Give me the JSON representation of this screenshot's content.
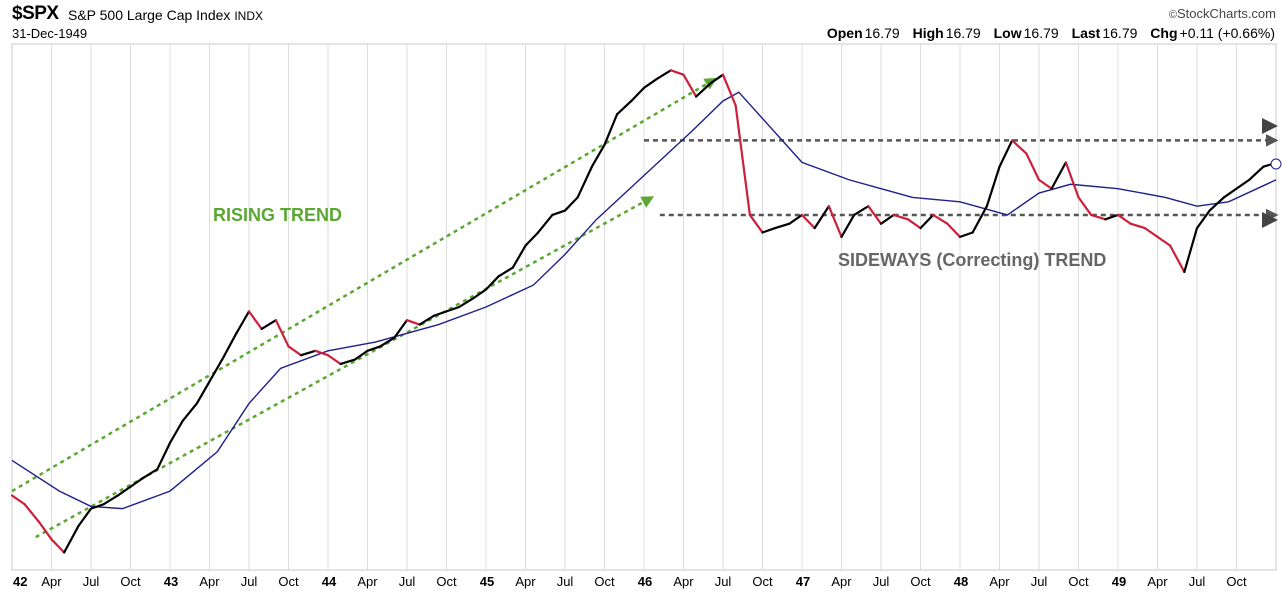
{
  "header": {
    "symbol": "$SPX",
    "name": "S&P 500 Large Cap Index",
    "exchange": "INDX",
    "date": "31-Dec-1949",
    "brand": "StockCharts.com",
    "open_label": "Open",
    "open": "16.79",
    "high_label": "High",
    "high": "16.79",
    "low_label": "Low",
    "low": "16.79",
    "last_label": "Last",
    "last": "16.79",
    "chg_label": "Chg",
    "chg": "+0.11 (+0.66%)"
  },
  "colors": {
    "up": "#000000",
    "down": "#cc1f3a",
    "moving_average": "#20208a",
    "rising_trend": "#5aa832",
    "sideways_trend": "#555555",
    "grid": "#dddddd"
  },
  "annotations": {
    "rising": "RISING TREND",
    "sideways": "SIDEWAYS (Correcting) TREND"
  },
  "chart_data": {
    "type": "line",
    "title": "$SPX S&P 500 Large Cap Index INDX",
    "x_ticks": [
      "42",
      "Apr",
      "Jul",
      "Oct",
      "43",
      "Apr",
      "Jul",
      "Oct",
      "44",
      "Apr",
      "Jul",
      "Oct",
      "45",
      "Apr",
      "Jul",
      "Oct",
      "46",
      "Apr",
      "Jul",
      "Oct",
      "47",
      "Apr",
      "Jul",
      "Oct",
      "48",
      "Apr",
      "Jul",
      "Oct",
      "49",
      "Apr",
      "Jul",
      "Oct"
    ],
    "x_range": [
      1942.0,
      1950.0
    ],
    "y_range": [
      7.5,
      19.5
    ],
    "grid": true,
    "series": [
      {
        "style": "price (black up / red down)",
        "x": [
          1942.0,
          1942.08,
          1942.17,
          1942.25,
          1942.33,
          1942.42,
          1942.5,
          1942.58,
          1942.67,
          1942.75,
          1942.83,
          1942.92,
          1943.0,
          1943.08,
          1943.17,
          1943.25,
          1943.33,
          1943.42,
          1943.5,
          1943.58,
          1943.67,
          1943.75,
          1943.83,
          1943.92,
          1944.0,
          1944.08,
          1944.17,
          1944.25,
          1944.33,
          1944.42,
          1944.5,
          1944.58,
          1944.67,
          1944.75,
          1944.83,
          1944.92,
          1945.0,
          1945.08,
          1945.17,
          1945.25,
          1945.33,
          1945.42,
          1945.5,
          1945.58,
          1945.67,
          1945.75,
          1945.83,
          1945.92,
          1946.0,
          1946.08,
          1946.17,
          1946.25,
          1946.33,
          1946.42,
          1946.5,
          1946.58,
          1946.67,
          1946.75,
          1946.83,
          1946.92,
          1947.0,
          1947.08,
          1947.17,
          1947.25,
          1947.33,
          1947.42,
          1947.5,
          1947.58,
          1947.67,
          1947.75,
          1947.83,
          1947.92,
          1948.0,
          1948.08,
          1948.17,
          1948.25,
          1948.33,
          1948.42,
          1948.5,
          1948.58,
          1948.67,
          1948.75,
          1948.83,
          1948.92,
          1949.0,
          1949.08,
          1949.17,
          1949.25,
          1949.33,
          1949.42,
          1949.5,
          1949.58,
          1949.67,
          1949.75,
          1949.83,
          1949.92,
          1950.0
        ],
        "y": [
          9.2,
          9.0,
          8.6,
          8.2,
          7.9,
          8.5,
          8.9,
          9.0,
          9.2,
          9.4,
          9.6,
          9.8,
          10.4,
          10.9,
          11.3,
          11.8,
          12.3,
          12.9,
          13.4,
          13.0,
          13.2,
          12.6,
          12.4,
          12.5,
          12.4,
          12.2,
          12.3,
          12.5,
          12.6,
          12.8,
          13.2,
          13.1,
          13.3,
          13.4,
          13.5,
          13.7,
          13.9,
          14.2,
          14.4,
          14.9,
          15.2,
          15.6,
          15.7,
          16.0,
          16.7,
          17.2,
          17.9,
          18.2,
          18.5,
          18.7,
          18.9,
          18.8,
          18.3,
          18.6,
          18.8,
          18.1,
          15.6,
          15.2,
          15.3,
          15.4,
          15.6,
          15.3,
          15.8,
          15.1,
          15.6,
          15.8,
          15.4,
          15.6,
          15.5,
          15.3,
          15.6,
          15.4,
          15.1,
          15.2,
          15.8,
          16.7,
          17.3,
          17.0,
          16.4,
          16.2,
          16.8,
          16.0,
          15.6,
          15.5,
          15.6,
          15.4,
          15.3,
          15.1,
          14.9,
          14.3,
          15.3,
          15.7,
          16.0,
          16.2,
          16.4,
          16.7,
          16.79
        ]
      },
      {
        "style": "moving average",
        "x": [
          1942.0,
          1942.3,
          1942.5,
          1942.7,
          1943.0,
          1943.3,
          1943.5,
          1943.7,
          1944.0,
          1944.3,
          1944.5,
          1944.7,
          1945.0,
          1945.3,
          1945.5,
          1945.7,
          1946.0,
          1946.3,
          1946.5,
          1946.6,
          1946.8,
          1947.0,
          1947.3,
          1947.5,
          1947.7,
          1948.0,
          1948.3,
          1948.5,
          1948.7,
          1949.0,
          1949.3,
          1949.5,
          1949.7,
          1950.0
        ],
        "y": [
          10.0,
          9.3,
          8.95,
          8.9,
          9.3,
          10.2,
          11.3,
          12.1,
          12.5,
          12.7,
          12.9,
          13.1,
          13.5,
          14.0,
          14.7,
          15.5,
          16.5,
          17.5,
          18.2,
          18.4,
          17.6,
          16.8,
          16.4,
          16.2,
          16.0,
          15.9,
          15.6,
          16.1,
          16.3,
          16.2,
          16.0,
          15.8,
          15.9,
          16.4
        ]
      }
    ],
    "trend_lines": [
      {
        "name": "rising upper",
        "x": [
          1942.0,
          1946.45
        ],
        "y": [
          9.3,
          18.7
        ]
      },
      {
        "name": "rising lower",
        "x": [
          1942.15,
          1946.05
        ],
        "y": [
          8.25,
          16.0
        ]
      },
      {
        "name": "sideways resistance",
        "x": [
          1946.0,
          1950.0
        ],
        "y": [
          17.3,
          17.3
        ]
      },
      {
        "name": "sideways support",
        "x": [
          1946.1,
          1950.0
        ],
        "y": [
          15.6,
          15.6
        ]
      }
    ]
  }
}
